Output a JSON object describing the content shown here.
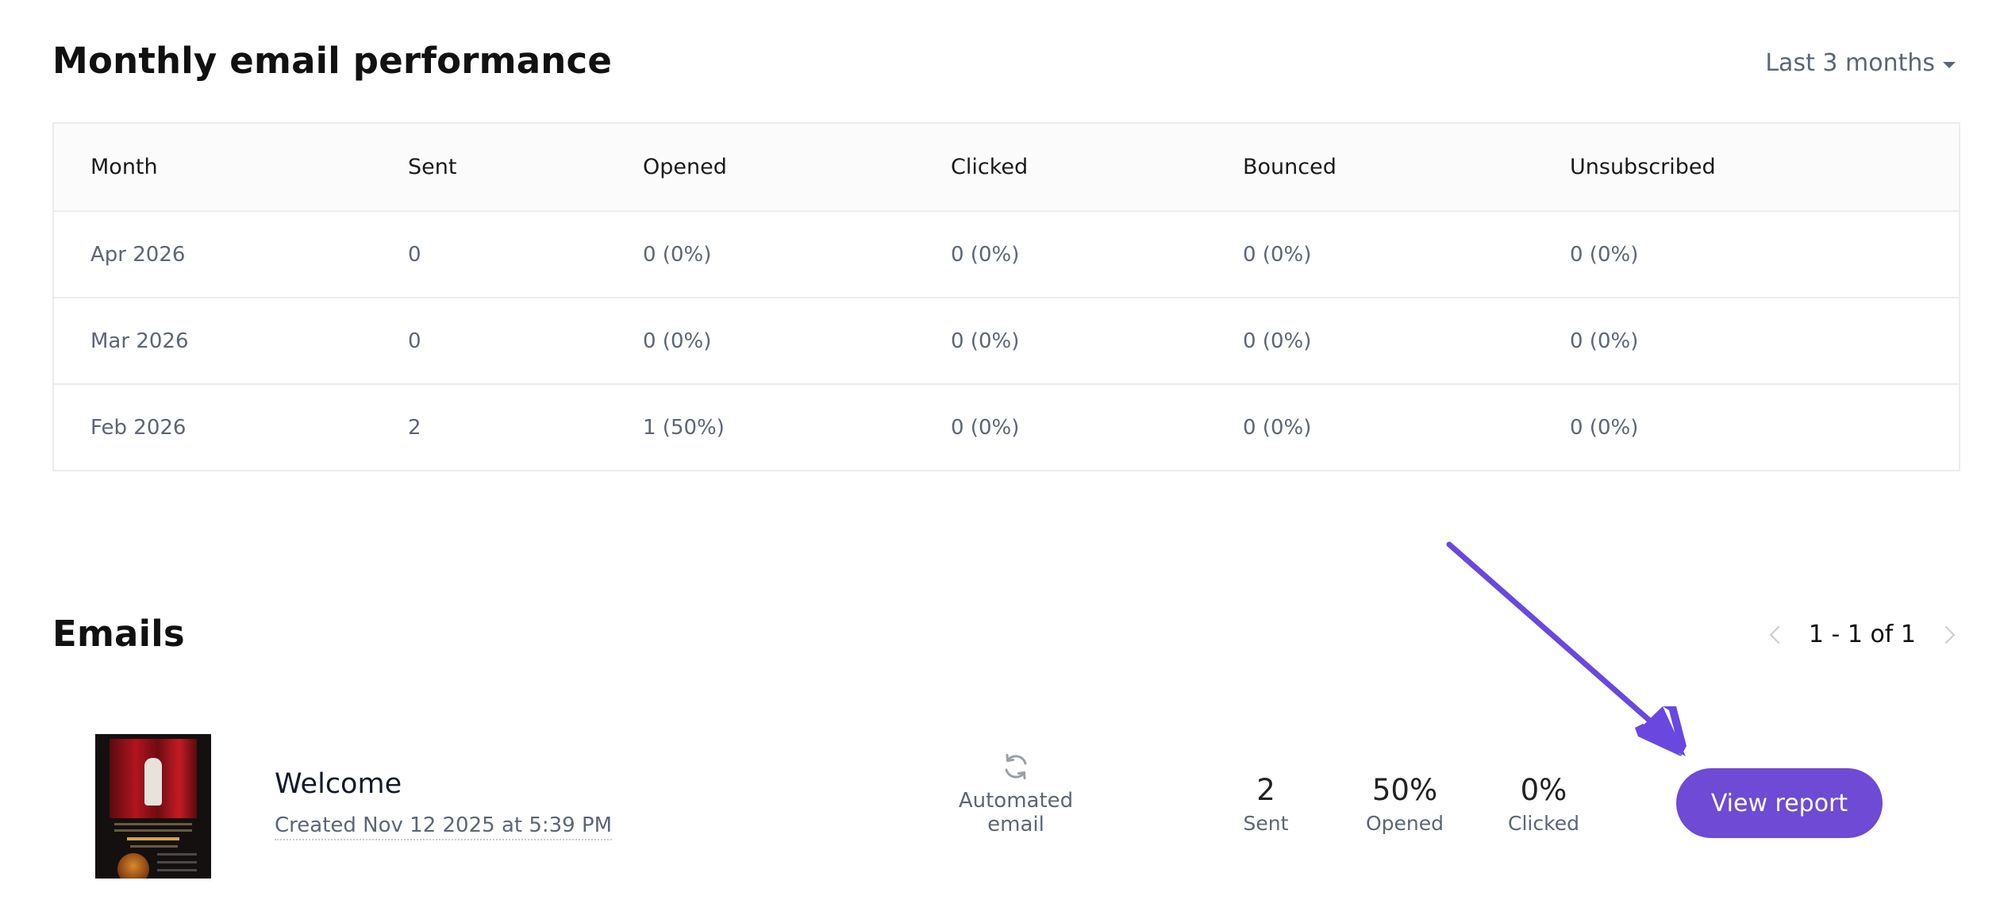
{
  "performance": {
    "title": "Monthly email performance",
    "range_label": "Last 3 months",
    "columns": [
      "Month",
      "Sent",
      "Opened",
      "Clicked",
      "Bounced",
      "Unsubscribed"
    ],
    "rows": [
      [
        "Apr 2026",
        "0",
        "0 (0%)",
        "0 (0%)",
        "0 (0%)",
        "0 (0%)"
      ],
      [
        "Mar 2026",
        "0",
        "0 (0%)",
        "0 (0%)",
        "0 (0%)",
        "0 (0%)"
      ],
      [
        "Feb 2026",
        "2",
        "1 (50%)",
        "0 (0%)",
        "0 (0%)",
        "0 (0%)"
      ]
    ]
  },
  "emails": {
    "title": "Emails",
    "pagination": "1 - 1 of 1",
    "items": [
      {
        "name": "Welcome",
        "created": "Created Nov 12 2025 at 5:39 PM",
        "type_label": "Automated email",
        "sent_value": "2",
        "sent_label": "Sent",
        "opened_value": "50%",
        "opened_label": "Opened",
        "clicked_value": "0%",
        "clicked_label": "Clicked",
        "action_label": "View report"
      }
    ]
  },
  "colors": {
    "accent": "#6f4ad4",
    "muted_text": "#5c6675",
    "border": "#ececec"
  },
  "icons": {
    "range": "chevron-down-icon",
    "prev": "chevron-left-icon",
    "next": "chevron-right-icon",
    "automated": "refresh-icon",
    "annotation": "arrow-annotation-icon"
  }
}
